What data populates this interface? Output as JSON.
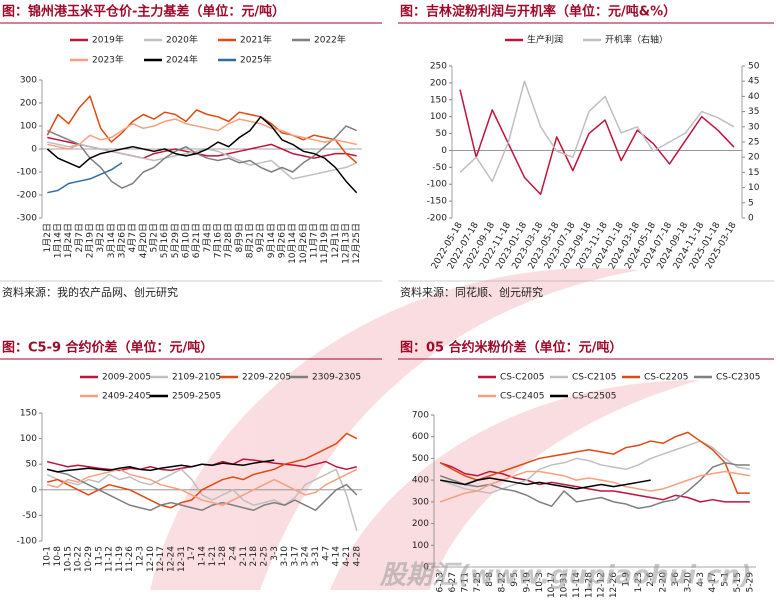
{
  "watermark": "股期汇(www.gupiaohui.cn)",
  "chart_data": [
    {
      "type": "line",
      "title": "图：锦州港玉米平仓价-主力基差（单位：元/吨）",
      "source": "资料来源：我的农产品网、创元研究",
      "categories": [
        "1月2日",
        "1月14日",
        "1月24日",
        "2月7日",
        "2月19日",
        "3月2日",
        "3月14日",
        "3月26日",
        "4月7日",
        "4月20日",
        "5月2日",
        "5月16日",
        "5月29日",
        "6月10日",
        "6月21日",
        "7月4日",
        "7月16日",
        "7月28日",
        "8月9日",
        "8月21日",
        "9月2日",
        "9月14日",
        "9月26日",
        "10月14日",
        "10月26日",
        "11月7日",
        "11月19日",
        "12月1日",
        "12月13日",
        "12月25日"
      ],
      "ylim": [
        -300,
        300
      ],
      "yticks": [
        -300,
        -200,
        -100,
        0,
        100,
        200,
        300
      ],
      "series": [
        {
          "name": "2019年",
          "color": "#c0143c",
          "values": [
            50,
            40,
            30,
            20,
            10,
            0,
            -10,
            -20,
            -30,
            -40,
            -20,
            -10,
            0,
            -10,
            -20,
            -30,
            -30,
            -20,
            -10,
            0,
            10,
            20,
            0,
            -20,
            -30,
            -40,
            -30,
            -20,
            -20,
            -30
          ]
        },
        {
          "name": "2020年",
          "color": "#bfbfbf",
          "values": [
            30,
            20,
            10,
            20,
            10,
            0,
            -10,
            -20,
            -30,
            -40,
            -50,
            -40,
            -30,
            -20,
            -10,
            0,
            -10,
            -30,
            -50,
            -70,
            -60,
            -50,
            -90,
            -130,
            -120,
            -110,
            -100,
            -90,
            -80,
            -60
          ]
        },
        {
          "name": "2021年",
          "color": "#e04a10",
          "values": [
            60,
            150,
            110,
            180,
            230,
            90,
            30,
            70,
            120,
            150,
            130,
            160,
            150,
            120,
            170,
            150,
            140,
            120,
            160,
            150,
            140,
            110,
            70,
            60,
            40,
            60,
            50,
            40,
            -20,
            -60
          ]
        },
        {
          "name": "2022年",
          "color": "#7f7f7f",
          "values": [
            80,
            60,
            40,
            20,
            -40,
            -80,
            -140,
            -170,
            -150,
            -100,
            -80,
            -40,
            -10,
            10,
            -20,
            -40,
            -50,
            -40,
            -60,
            -50,
            -80,
            -100,
            -80,
            -100,
            -60,
            -30,
            10,
            50,
            100,
            80
          ]
        },
        {
          "name": "2023年",
          "color": "#f7a07f",
          "values": [
            20,
            10,
            0,
            20,
            60,
            40,
            50,
            80,
            110,
            90,
            100,
            120,
            130,
            110,
            100,
            90,
            80,
            110,
            130,
            120,
            110,
            90,
            80,
            60,
            50,
            40,
            30,
            40,
            30,
            20
          ]
        },
        {
          "name": "2024年",
          "color": "#000000",
          "values": [
            0,
            -40,
            -60,
            -80,
            -40,
            -20,
            -10,
            0,
            10,
            0,
            -10,
            0,
            -20,
            -30,
            -20,
            0,
            30,
            10,
            50,
            80,
            140,
            100,
            40,
            20,
            -10,
            -20,
            -40,
            -80,
            -140,
            -190
          ]
        },
        {
          "name": "2025年",
          "color": "#2f6da3",
          "values": [
            -190,
            -180,
            -150,
            -140,
            -130,
            -110,
            -90,
            -60,
            null,
            null,
            null,
            null,
            null,
            null,
            null,
            null,
            null,
            null,
            null,
            null,
            null,
            null,
            null,
            null,
            null,
            null,
            null,
            null,
            null,
            null
          ]
        }
      ]
    },
    {
      "type": "line",
      "title": "图：吉林淀粉利润与开机率（单位：元/吨&%）",
      "source": "资料来源：同花顺、创元研究",
      "categories": [
        "2022-05-18",
        "2022-07-18",
        "2022-09-18",
        "2022-11-18",
        "2023-01-18",
        "2023-03-18",
        "2023-05-18",
        "2023-07-18",
        "2023-09-18",
        "2023-11-18",
        "2024-01-18",
        "2024-03-18",
        "2024-05-18",
        "2024-07-18",
        "2024-09-18",
        "2024-11-18",
        "2025-01-18",
        "2025-03-18"
      ],
      "ylim": [
        -200,
        250
      ],
      "yticks": [
        -200,
        -150,
        -100,
        -50,
        0,
        50,
        100,
        150,
        200,
        250
      ],
      "y2lim": [
        0,
        50
      ],
      "y2ticks": [
        0,
        5,
        10,
        15,
        20,
        25,
        30,
        35,
        40,
        45,
        50
      ],
      "series": [
        {
          "name": "生产利润",
          "color": "#c0143c",
          "values": [
            180,
            -20,
            120,
            20,
            -80,
            -130,
            40,
            -60,
            50,
            90,
            -30,
            60,
            20,
            -40,
            30,
            100,
            60,
            10
          ]
        },
        {
          "name": "开机率（右轴）",
          "color": "#bfbfbf",
          "axis": "y2",
          "values": [
            15,
            20,
            12,
            25,
            45,
            30,
            22,
            20,
            35,
            40,
            28,
            30,
            22,
            25,
            28,
            35,
            33,
            30
          ]
        }
      ]
    },
    {
      "type": "line",
      "title": "图：C5-9 合约价差（单位：元/吨）",
      "categories": [
        "10-1",
        "10-8",
        "10-15",
        "10-22",
        "10-29",
        "11-5",
        "11-12",
        "11-19",
        "11-26",
        "12-3",
        "12-10",
        "12-17",
        "12-24",
        "12-31",
        "1-7",
        "1-14",
        "1-21",
        "1-28",
        "2-4",
        "2-11",
        "2-18",
        "2-25",
        "3-3",
        "3-10",
        "3-17",
        "3-24",
        "3-31",
        "4-7",
        "4-14",
        "4-21",
        "4-28"
      ],
      "ylim": [
        -100,
        150
      ],
      "yticks": [
        -100,
        -50,
        0,
        50,
        100,
        150
      ],
      "series": [
        {
          "name": "2009-2005",
          "color": "#c0143c",
          "values": [
            55,
            50,
            45,
            48,
            45,
            42,
            40,
            38,
            42,
            40,
            45,
            40,
            38,
            42,
            45,
            50,
            48,
            55,
            50,
            60,
            58,
            55,
            52,
            50,
            48,
            45,
            50,
            55,
            45,
            40,
            45
          ]
        },
        {
          "name": "2109-2105",
          "color": "#bfbfbf",
          "values": [
            30,
            20,
            15,
            10,
            20,
            15,
            30,
            20,
            25,
            15,
            10,
            20,
            30,
            40,
            20,
            -10,
            -20,
            -10,
            0,
            -20,
            -30,
            -25,
            -20,
            -30,
            -15,
            10,
            20,
            30,
            40,
            -10,
            -80
          ]
        },
        {
          "name": "2209-2205",
          "color": "#e04a10",
          "values": [
            15,
            20,
            10,
            0,
            -10,
            0,
            10,
            5,
            0,
            -10,
            -20,
            -30,
            -35,
            -25,
            -20,
            0,
            10,
            20,
            25,
            20,
            30,
            35,
            40,
            50,
            55,
            60,
            70,
            80,
            90,
            110,
            100
          ]
        },
        {
          "name": "2309-2305",
          "color": "#7f7f7f",
          "values": [
            40,
            35,
            30,
            20,
            10,
            0,
            -10,
            -20,
            -30,
            -35,
            -40,
            -30,
            -25,
            -30,
            -35,
            -40,
            -30,
            -25,
            -30,
            -35,
            -40,
            -30,
            -25,
            -30,
            -20,
            -30,
            -40,
            -20,
            0,
            10,
            -10
          ]
        },
        {
          "name": "2409-2405",
          "color": "#f7a07f",
          "values": [
            10,
            5,
            20,
            15,
            25,
            30,
            35,
            40,
            30,
            25,
            20,
            10,
            5,
            0,
            -10,
            -20,
            -25,
            -30,
            -20,
            -10,
            0,
            10,
            20,
            10,
            0,
            -10,
            -5,
            10,
            20,
            30,
            40
          ]
        },
        {
          "name": "2509-2505",
          "color": "#000000",
          "values": [
            40,
            35,
            38,
            40,
            42,
            40,
            38,
            42,
            45,
            40,
            38,
            42,
            45,
            48,
            45,
            50,
            48,
            52,
            50,
            48,
            52,
            55,
            58,
            null,
            null,
            null,
            null,
            null,
            null,
            null,
            null
          ]
        }
      ]
    },
    {
      "type": "line",
      "title": "图：05 合约米粉价差（单位：元/吨）",
      "categories": [
        "6-13",
        "6-27",
        "7-11",
        "7-25",
        "8-8",
        "8-22",
        "9-5",
        "9-19",
        "10-3",
        "10-17",
        "10-31",
        "11-14",
        "11-28",
        "12-12",
        "12-26",
        "1-9",
        "1-23",
        "2-6",
        "2-20",
        "3-6",
        "3-20",
        "4-3",
        "4-17",
        "5-1",
        "5-15",
        "5-29"
      ],
      "ylim": [
        0,
        700
      ],
      "yticks": [
        0,
        100,
        200,
        300,
        400,
        500,
        600,
        700
      ],
      "series": [
        {
          "name": "CS-C2005",
          "color": "#c0143c",
          "values": [
            480,
            460,
            430,
            420,
            440,
            430,
            410,
            400,
            380,
            390,
            380,
            370,
            360,
            350,
            350,
            340,
            330,
            320,
            310,
            330,
            320,
            300,
            310,
            300,
            300,
            300
          ]
        },
        {
          "name": "CS-C2105",
          "color": "#bfbfbf",
          "values": [
            400,
            380,
            360,
            350,
            340,
            360,
            380,
            400,
            450,
            470,
            480,
            500,
            490,
            470,
            460,
            450,
            470,
            500,
            520,
            540,
            560,
            580,
            550,
            500,
            460,
            450
          ]
        },
        {
          "name": "CS-C2205",
          "color": "#e04a10",
          "values": [
            480,
            450,
            420,
            400,
            420,
            440,
            460,
            480,
            500,
            510,
            520,
            530,
            540,
            530,
            520,
            550,
            560,
            580,
            570,
            600,
            620,
            580,
            540,
            480,
            340,
            340
          ]
        },
        {
          "name": "CS-C2305",
          "color": "#7f7f7f",
          "values": [
            420,
            400,
            380,
            370,
            380,
            360,
            350,
            330,
            300,
            280,
            350,
            300,
            310,
            320,
            300,
            290,
            270,
            280,
            300,
            310,
            350,
            400,
            460,
            480,
            470,
            470
          ]
        },
        {
          "name": "CS-C2405",
          "color": "#f7a07f",
          "values": [
            300,
            320,
            340,
            350,
            380,
            400,
            420,
            440,
            440,
            430,
            420,
            400,
            410,
            400,
            390,
            370,
            360,
            350,
            360,
            380,
            400,
            420,
            430,
            440,
            430,
            420
          ]
        },
        {
          "name": "CS-C2505",
          "color": "#000000",
          "values": [
            400,
            390,
            380,
            400,
            410,
            400,
            390,
            380,
            390,
            380,
            370,
            360,
            370,
            380,
            370,
            380,
            390,
            400,
            null,
            null,
            null,
            null,
            null,
            null,
            null,
            null
          ]
        }
      ]
    }
  ]
}
